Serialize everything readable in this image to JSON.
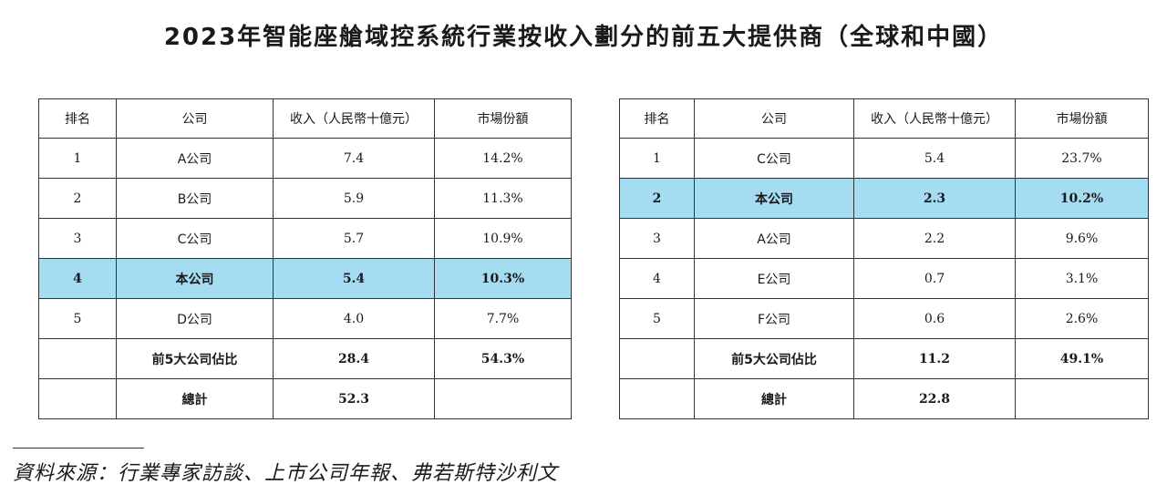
{
  "title": "2023年智能座艙域控系統行業按收入劃分的前五大提供商（全球和中國）",
  "headers": [
    "排名",
    "公司",
    "收入（人民幣十億元）",
    "市場份額"
  ],
  "global": {
    "rows": [
      {
        "rank": "1",
        "company": "A公司",
        "revenue": "7.4",
        "share": "14.2%"
      },
      {
        "rank": "2",
        "company": "B公司",
        "revenue": "5.9",
        "share": "11.3%"
      },
      {
        "rank": "3",
        "company": "C公司",
        "revenue": "5.7",
        "share": "10.9%"
      },
      {
        "rank": "4",
        "company": "本公司",
        "revenue": "5.4",
        "share": "10.3%"
      },
      {
        "rank": "5",
        "company": "D公司",
        "revenue": "4.0",
        "share": "7.7%"
      }
    ],
    "top5": {
      "label": "前5大公司佔比",
      "revenue": "28.4",
      "share": "54.3%"
    },
    "total": {
      "label": "總計",
      "revenue": "52.3"
    }
  },
  "china": {
    "rows": [
      {
        "rank": "1",
        "company": "C公司",
        "revenue": "5.4",
        "share": "23.7%"
      },
      {
        "rank": "2",
        "company": "本公司",
        "revenue": "2.3",
        "share": "10.2%"
      },
      {
        "rank": "3",
        "company": "A公司",
        "revenue": "2.2",
        "share": "9.6%"
      },
      {
        "rank": "4",
        "company": "E公司",
        "revenue": "0.7",
        "share": "3.1%"
      },
      {
        "rank": "5",
        "company": "F公司",
        "revenue": "0.6",
        "share": "2.6%"
      }
    ],
    "top5": {
      "label": "前5大公司佔比",
      "revenue": "11.2",
      "share": "49.1%"
    },
    "total": {
      "label": "總計",
      "revenue": "22.8"
    }
  },
  "source": "資料來源：行業專家訪談、上市公司年報、弗若斯特沙利文",
  "colors": {
    "highlight": "#a5dcf1",
    "border": "#333333"
  }
}
